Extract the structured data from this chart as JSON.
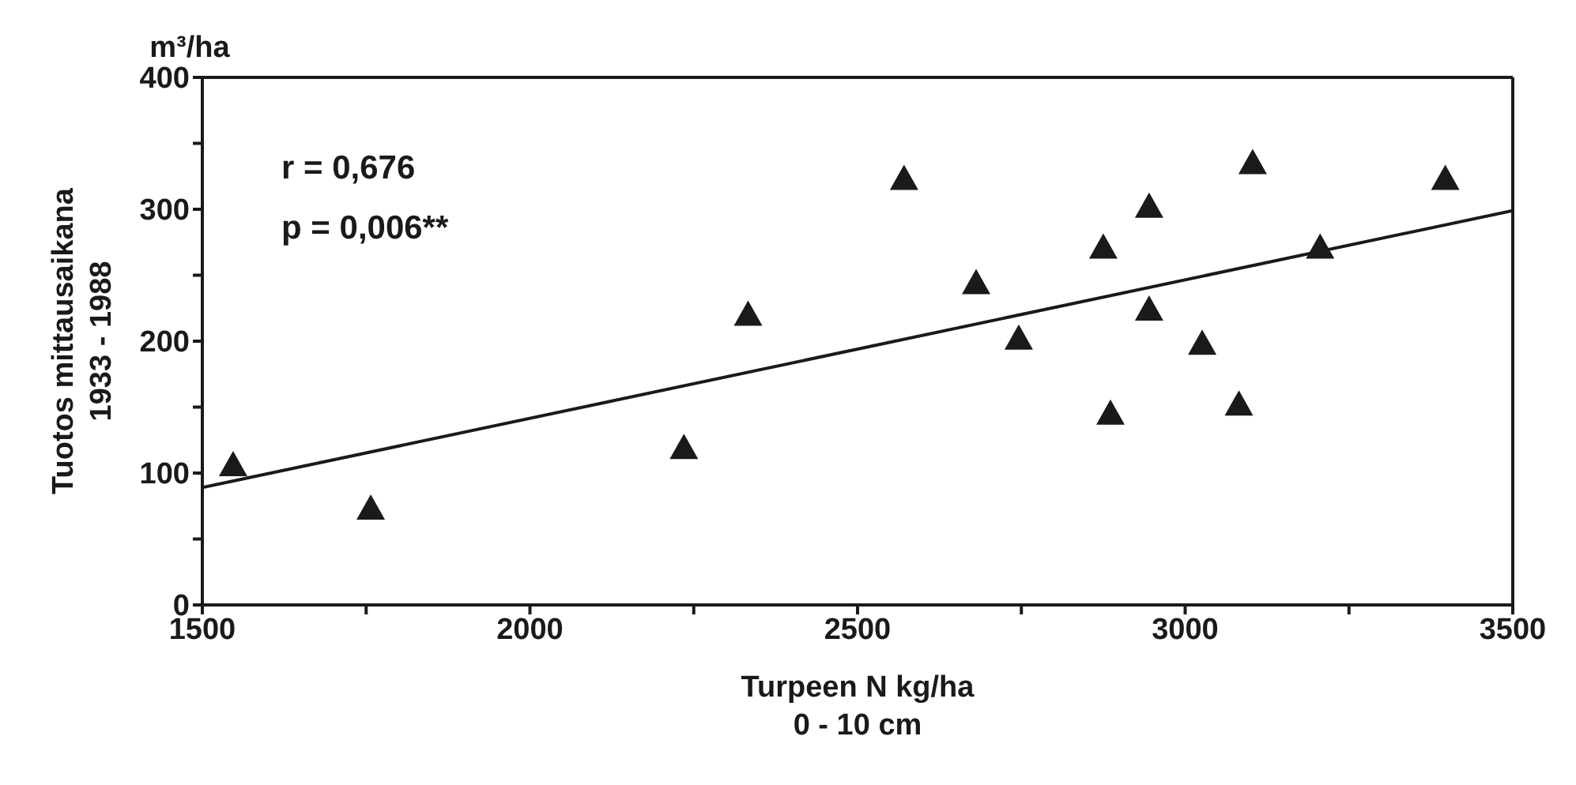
{
  "chart_data": {
    "type": "scatter",
    "xlabel": "Turpeen N kg/ha\n0 - 10 cm",
    "ylabel": "Tuotos mittausaikana\n1933 - 1988",
    "annotations": [
      "m³/ha",
      "r = 0,676",
      "p = 0,006**"
    ],
    "xlim": [
      1500,
      3500
    ],
    "xticks": [
      1500,
      {
        "value": 1750,
        "label": null
      },
      2000,
      {
        "value": 2250,
        "label": null
      },
      2500,
      {
        "value": 2750,
        "label": null
      },
      3000,
      {
        "value": 3250,
        "label": null
      },
      3500
    ],
    "ylim": [
      0,
      400
    ],
    "yticks": [
      0,
      {
        "value": 50,
        "label": null
      },
      100,
      {
        "value": 150,
        "label": null
      },
      200,
      {
        "value": 250,
        "label": null
      },
      300,
      {
        "value": 350,
        "label": null
      },
      400
    ],
    "marker": "triangle",
    "series": [
      {
        "color": "#1a1a1a",
        "x": [
          1547,
          1757,
          2235,
          2333,
          2571,
          2681,
          2746,
          2875,
          2886,
          2945,
          2945,
          3026,
          3082,
          3103,
          3206,
          3397
        ],
        "values": [
          106,
          73,
          119,
          220,
          323,
          244,
          202,
          271,
          145,
          302,
          224,
          198,
          152,
          335,
          271,
          323
        ]
      },
      {
        "type": "line",
        "marker": "none",
        "color": "#1a1a1a",
        "x": [
          1500,
          3500
        ],
        "values": [
          89,
          299
        ]
      }
    ]
  }
}
